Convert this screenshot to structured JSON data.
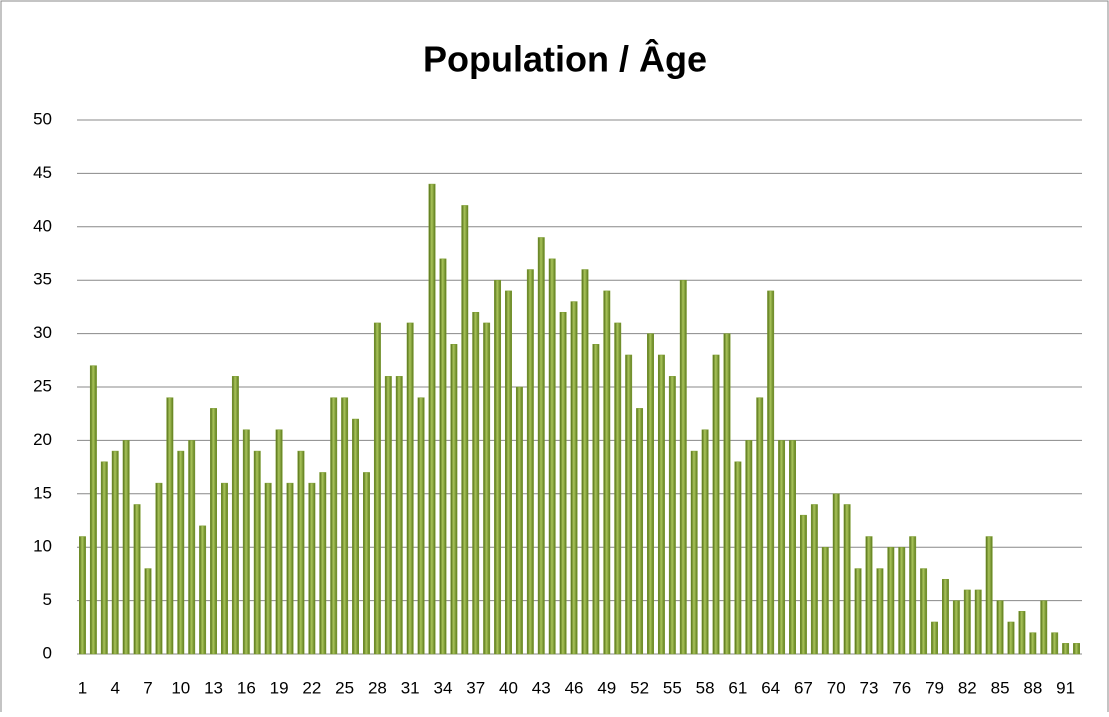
{
  "chart_data": {
    "type": "bar",
    "title": "Population / Âge",
    "categories": [
      1,
      null,
      null,
      4,
      null,
      null,
      7,
      null,
      null,
      10,
      null,
      null,
      13,
      null,
      null,
      16,
      null,
      null,
      19,
      null,
      null,
      22,
      null,
      null,
      25,
      null,
      null,
      28,
      null,
      null,
      31,
      null,
      null,
      34,
      null,
      null,
      37,
      null,
      null,
      40,
      null,
      null,
      43,
      null,
      null,
      46,
      null,
      null,
      49,
      null,
      null,
      52,
      null,
      null,
      55,
      null,
      null,
      58,
      null,
      null,
      61,
      null,
      null,
      64,
      null,
      null,
      67,
      null,
      null,
      70,
      null,
      null,
      73,
      null,
      null,
      76,
      null,
      null,
      79,
      null,
      null,
      82,
      null,
      null,
      85,
      null,
      null,
      88,
      null,
      null,
      91,
      null
    ],
    "values": [
      11,
      27,
      18,
      19,
      20,
      14,
      8,
      16,
      24,
      19,
      20,
      12,
      23,
      16,
      26,
      21,
      19,
      16,
      21,
      16,
      19,
      16,
      17,
      24,
      24,
      22,
      17,
      31,
      26,
      26,
      31,
      24,
      44,
      37,
      29,
      42,
      32,
      31,
      35,
      34,
      25,
      36,
      39,
      37,
      32,
      33,
      36,
      29,
      34,
      31,
      28,
      23,
      30,
      28,
      26,
      35,
      19,
      21,
      28,
      30,
      18,
      20,
      24,
      34,
      20,
      20,
      13,
      14,
      10,
      15,
      14,
      8,
      11,
      8,
      10,
      10,
      11,
      8,
      3,
      7,
      5,
      6,
      6,
      11,
      5,
      3,
      4,
      2,
      5,
      2,
      1,
      1
    ],
    "color": "#7a9a2e",
    "ylim": [
      0,
      50
    ],
    "yticks": [
      0,
      5,
      10,
      15,
      20,
      25,
      30,
      35,
      40,
      45,
      50
    ],
    "grid": true
  }
}
